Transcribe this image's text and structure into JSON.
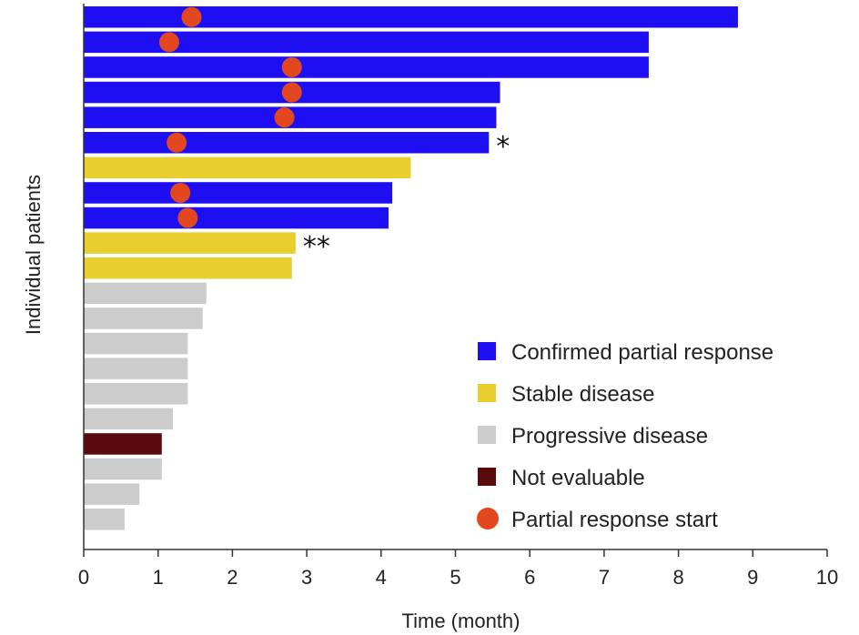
{
  "chart_data": {
    "type": "bar",
    "orientation": "horizontal",
    "xlabel": "Time (month)",
    "ylabel": "Individual patients",
    "xlim": [
      0,
      10
    ],
    "xticks": [
      "0",
      "1",
      "2",
      "3",
      "4",
      "5",
      "6",
      "7",
      "8",
      "9",
      "10"
    ],
    "grid": false,
    "legend_position": "bottom-right",
    "colors": {
      "confirmed_partial_response": "#1e0ff2",
      "stable_disease": "#e8cf2e",
      "progressive_disease": "#cccccc",
      "not_evaluable": "#5a0a0a",
      "partial_response_start": "#e2471f"
    },
    "legend": [
      {
        "key": "confirmed_partial_response",
        "label": "Confirmed partial response",
        "marker": "square"
      },
      {
        "key": "stable_disease",
        "label": "Stable disease",
        "marker": "square"
      },
      {
        "key": "progressive_disease",
        "label": "Progressive disease",
        "marker": "square"
      },
      {
        "key": "not_evaluable",
        "label": "Not evaluable",
        "marker": "square"
      },
      {
        "key": "partial_response_start",
        "label": "Partial response start",
        "marker": "circle"
      }
    ],
    "patients": [
      {
        "duration": 8.8,
        "status": "confirmed_partial_response",
        "response_start": 1.45,
        "annotation": ""
      },
      {
        "duration": 7.6,
        "status": "confirmed_partial_response",
        "response_start": 1.15,
        "annotation": ""
      },
      {
        "duration": 7.6,
        "status": "confirmed_partial_response",
        "response_start": 2.8,
        "annotation": ""
      },
      {
        "duration": 5.6,
        "status": "confirmed_partial_response",
        "response_start": 2.8,
        "annotation": ""
      },
      {
        "duration": 5.55,
        "status": "confirmed_partial_response",
        "response_start": 2.7,
        "annotation": ""
      },
      {
        "duration": 5.45,
        "status": "confirmed_partial_response",
        "response_start": 1.25,
        "annotation": "*"
      },
      {
        "duration": 4.4,
        "status": "stable_disease",
        "response_start": null,
        "annotation": ""
      },
      {
        "duration": 4.15,
        "status": "confirmed_partial_response",
        "response_start": 1.3,
        "annotation": ""
      },
      {
        "duration": 4.1,
        "status": "confirmed_partial_response",
        "response_start": 1.4,
        "annotation": ""
      },
      {
        "duration": 2.85,
        "status": "stable_disease",
        "response_start": null,
        "annotation": "**"
      },
      {
        "duration": 2.8,
        "status": "stable_disease",
        "response_start": null,
        "annotation": ""
      },
      {
        "duration": 1.65,
        "status": "progressive_disease",
        "response_start": null,
        "annotation": ""
      },
      {
        "duration": 1.6,
        "status": "progressive_disease",
        "response_start": null,
        "annotation": ""
      },
      {
        "duration": 1.4,
        "status": "progressive_disease",
        "response_start": null,
        "annotation": ""
      },
      {
        "duration": 1.4,
        "status": "progressive_disease",
        "response_start": null,
        "annotation": ""
      },
      {
        "duration": 1.4,
        "status": "progressive_disease",
        "response_start": null,
        "annotation": ""
      },
      {
        "duration": 1.2,
        "status": "progressive_disease",
        "response_start": null,
        "annotation": ""
      },
      {
        "duration": 1.05,
        "status": "not_evaluable",
        "response_start": null,
        "annotation": ""
      },
      {
        "duration": 1.05,
        "status": "progressive_disease",
        "response_start": null,
        "annotation": ""
      },
      {
        "duration": 0.75,
        "status": "progressive_disease",
        "response_start": null,
        "annotation": ""
      },
      {
        "duration": 0.55,
        "status": "progressive_disease",
        "response_start": null,
        "annotation": ""
      }
    ]
  }
}
